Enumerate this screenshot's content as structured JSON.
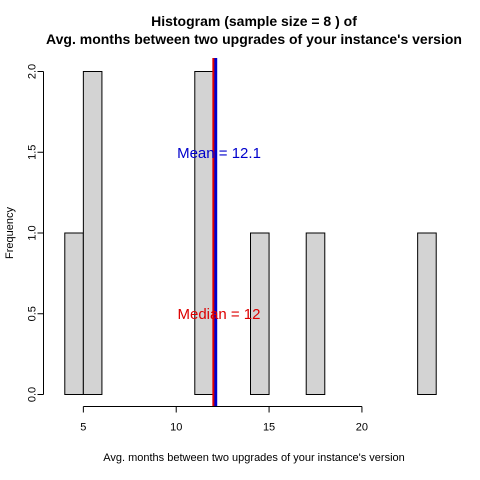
{
  "chart_data": {
    "type": "bar",
    "title_line1": "Histogram (sample size =  8 ) of",
    "title_line2": "Avg. months between two upgrades of your instance's version",
    "xlabel": "Avg. months between two upgrades of your instance's version",
    "ylabel": "Frequency",
    "xlim": [
      3.5,
      24.5
    ],
    "ylim": [
      0,
      2
    ],
    "x_ticks": [
      5,
      10,
      15,
      20
    ],
    "y_ticks": [
      0.0,
      0.5,
      1.0,
      1.5,
      2.0
    ],
    "x_tick_labels": [
      "5",
      "10",
      "15",
      "20"
    ],
    "y_tick_labels": [
      "0.0",
      "0.5",
      "1.0",
      "1.5",
      "2.0"
    ],
    "bins": [
      {
        "start": 4,
        "end": 5,
        "count": 1
      },
      {
        "start": 5,
        "end": 6,
        "count": 2
      },
      {
        "start": 11,
        "end": 12,
        "count": 2
      },
      {
        "start": 14,
        "end": 15,
        "count": 1
      },
      {
        "start": 17,
        "end": 18,
        "count": 1
      },
      {
        "start": 23,
        "end": 24,
        "count": 1
      }
    ],
    "mean": {
      "value": 12.1,
      "label": "Mean = 12.1",
      "color": "#0000cc"
    },
    "median": {
      "value": 12,
      "label": "Median = 12",
      "color": "#dd0000"
    },
    "bar_fill": "#d3d3d3",
    "bar_stroke": "#000000",
    "grid": false,
    "legend": "none"
  }
}
